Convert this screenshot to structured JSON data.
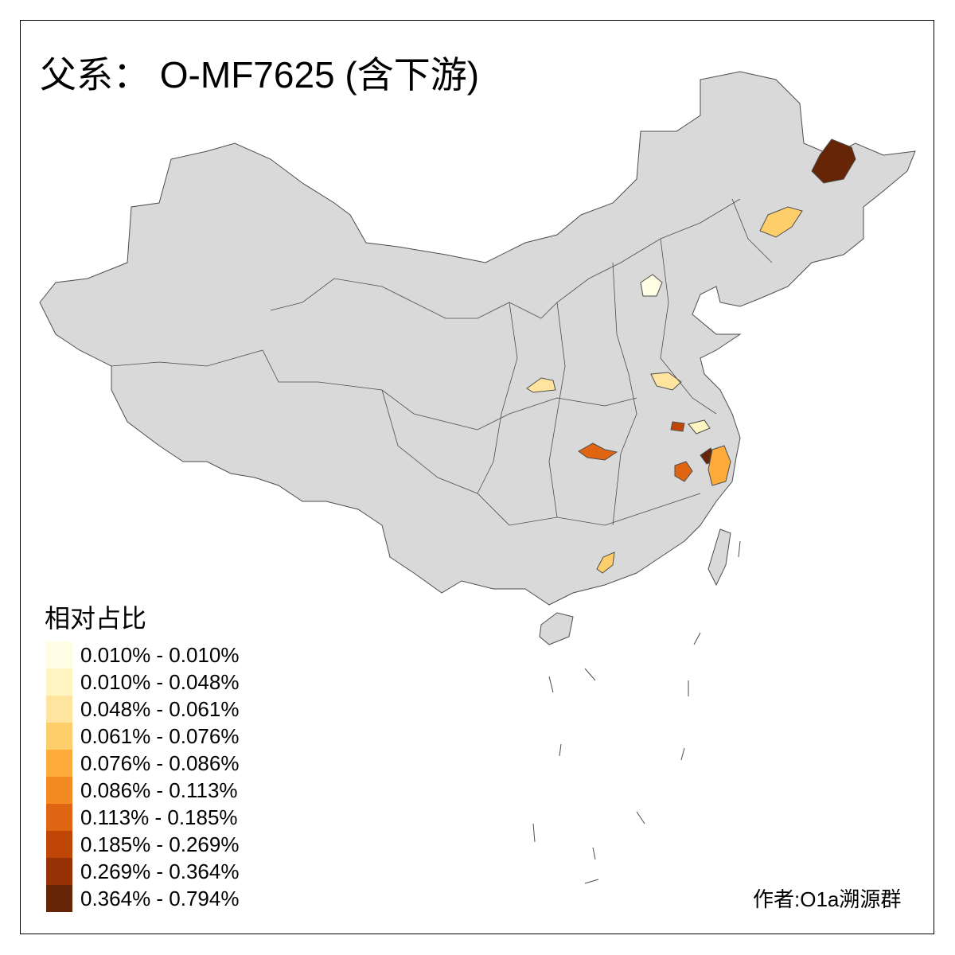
{
  "title": "父系： O-MF7625 (含下游)",
  "legend": {
    "title": "相对占比",
    "items": [
      {
        "label": "0.010% - 0.010%",
        "color": "#FFFDE3"
      },
      {
        "label": "0.010% - 0.048%",
        "color": "#FFF5C3"
      },
      {
        "label": "0.048% - 0.061%",
        "color": "#FEE49E"
      },
      {
        "label": "0.061% - 0.076%",
        "color": "#FECE6A"
      },
      {
        "label": "0.076% - 0.086%",
        "color": "#FDAC3C"
      },
      {
        "label": "0.086% - 0.113%",
        "color": "#F38A22"
      },
      {
        "label": "0.113% - 0.185%",
        "color": "#E06512"
      },
      {
        "label": "0.185% - 0.269%",
        "color": "#C04606"
      },
      {
        "label": "0.269% - 0.364%",
        "color": "#983105"
      },
      {
        "label": "0.364% - 0.794%",
        "color": "#662506"
      }
    ]
  },
  "credit": "作者:O1a溯源群",
  "colors": {
    "land": "#D9D9D9",
    "border": "#4D4D4D"
  }
}
